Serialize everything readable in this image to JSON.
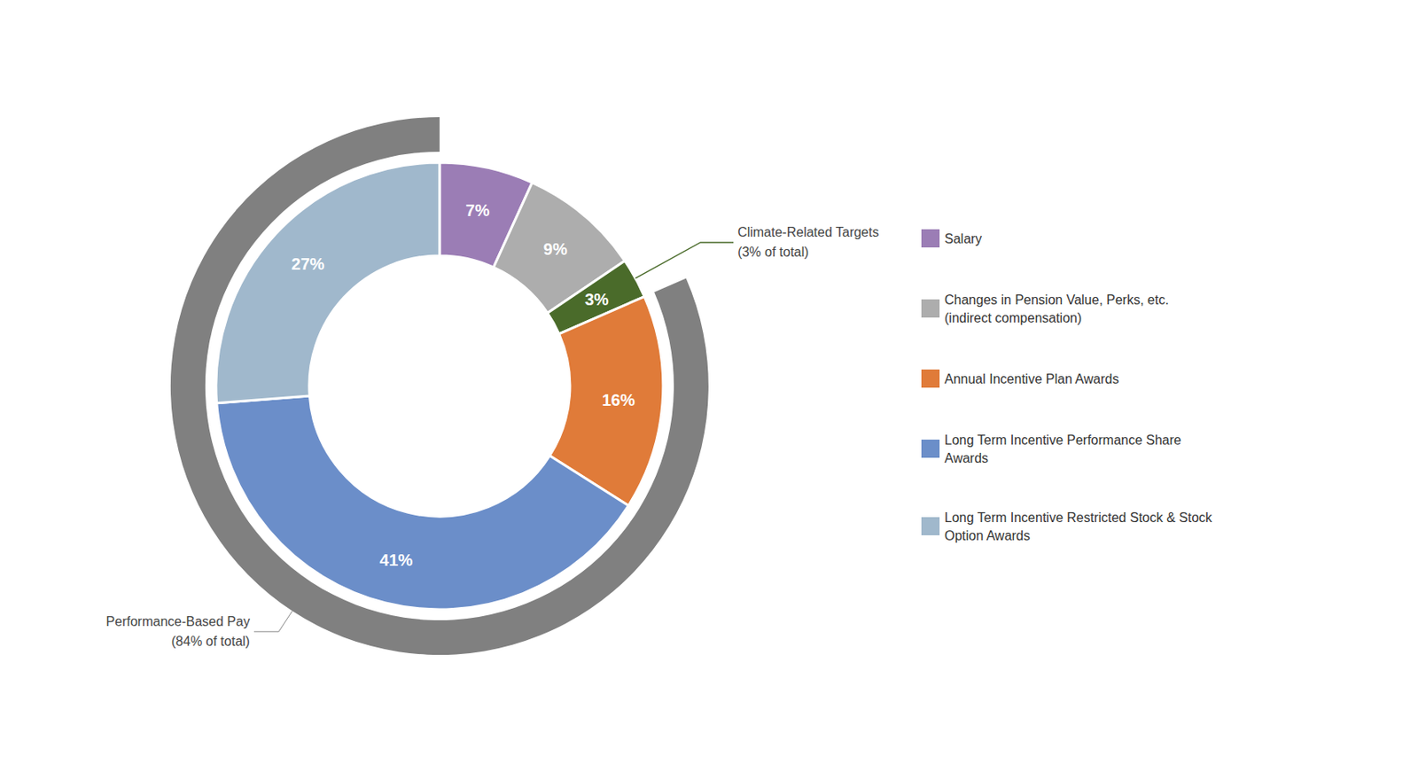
{
  "chart_data": {
    "type": "pie",
    "categories": [
      "Salary",
      "Changes in Pension Value, Perks, etc.\n(indirect compensation)",
      null,
      "Annual Incentive Plan Awards",
      "Long Term Incentive Performance Share\nAwards",
      "Long Term Incentive Restricted Stock & Stock\nOption Awards"
    ],
    "values": [
      7,
      9,
      3,
      16,
      41,
      27
    ],
    "value_labels": [
      "7%",
      "9%",
      "3%",
      "16%",
      "41%",
      "27%"
    ],
    "colors": [
      "#9b7db5",
      "#adadad",
      "#4a6b2a",
      "#e07b39",
      "#6b8ec9",
      "#a0b8cc"
    ],
    "data_labels": true,
    "legend": "right",
    "outer_arc": {
      "value": 84,
      "color": "#808080",
      "label": "Performance-Based Pay\n(84% of total)"
    },
    "annotations": [
      {
        "text": "Climate-Related Targets\n(3% of total)",
        "value": 3,
        "color": "#4a6b2a"
      }
    ]
  }
}
